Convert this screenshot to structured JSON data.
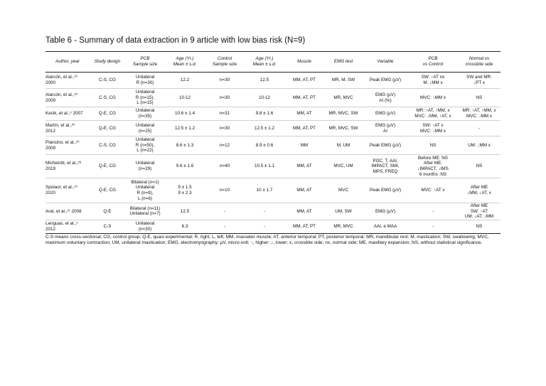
{
  "title": "Table 6 - Summary of data extraction in 9 article with low bias risk (N=9)",
  "columns": [
    [
      "Author, year"
    ],
    [
      "Study design"
    ],
    [
      "PCB",
      "Sample size"
    ],
    [
      "Age (Yr.)",
      "Mean ± s.d."
    ],
    [
      "Control",
      "Sample size"
    ],
    [
      "Age (Yr.)",
      "Mean ± s.d."
    ],
    [
      "Muscle"
    ],
    [
      "EMG test"
    ],
    [
      "Variable"
    ],
    [
      "PCB",
      "vs Control"
    ],
    [
      "Normal vs",
      "crossbite side"
    ]
  ],
  "rows": [
    {
      "author": [
        "Alarcón, et al.,¹⁶",
        "2000"
      ],
      "cells": [
        [
          "C-S, CG"
        ],
        [
          "Unilateral",
          "R (n=30)"
        ],
        [
          "12.2"
        ],
        [
          "n=30"
        ],
        [
          "12.5"
        ],
        [
          "MM, AT, PT"
        ],
        [
          "MR, M, SW"
        ],
        [
          "Peak EMG (µV)"
        ],
        [
          "SW: ↑AT nx",
          "M: ↓MM x"
        ],
        [
          "SW and MR:",
          "↓PT x"
        ]
      ]
    },
    {
      "author": [
        "Alarcón, et al.,¹⁸",
        "2009"
      ],
      "cells": [
        [
          "C-S, CG"
        ],
        [
          "Unilateral",
          "R (n=15),",
          "L (n=15)"
        ],
        [
          "10-12"
        ],
        [
          "n=30"
        ],
        [
          "10-12"
        ],
        [
          "MM, AT, PT"
        ],
        [
          "MR, MVC"
        ],
        [
          "EMG (µV)",
          "AI (%)"
        ],
        [
          "MVC: ↓MM x"
        ],
        [
          "NS"
        ]
      ]
    },
    {
      "author": [
        "Kecik, et al.,⁵ 2007"
      ],
      "cells": [
        [
          "Q-E, CG"
        ],
        [
          "Unilateral",
          "(n=35)"
        ],
        [
          "10.6 ± 1.4"
        ],
        [
          "n=31"
        ],
        [
          "9.8 ± 1.6"
        ],
        [
          "MM, AT"
        ],
        [
          "MR, MVC, SW"
        ],
        [
          "EMG (µV)"
        ],
        [
          "MR: ↑AT, ↑MM, x",
          "MVC: ↓MM, ↑AT, x"
        ],
        [
          "MR: ↑AT, ↑MM, x",
          "MVC: ↓MM x"
        ]
      ]
    },
    {
      "author": [
        "Martín, et al.,²⁵",
        "2012"
      ],
      "cells": [
        [
          "Q-E, CG"
        ],
        [
          "Unilateral",
          "(n=25)"
        ],
        [
          "12.5 ± 1.2"
        ],
        [
          "n=30"
        ],
        [
          "12.5 ± 1.2"
        ],
        [
          "MM, AT, PT"
        ],
        [
          "MR, MVC, SW"
        ],
        [
          "EMG (µV)",
          "AI"
        ],
        [
          "SW: ↑AT x",
          "MVC: ↓MM x"
        ],
        [
          "-"
        ]
      ]
    },
    {
      "author": [
        "Piancino, et al.,²⁶",
        "2009"
      ],
      "cells": [
        [
          "C-S, CG"
        ],
        [
          "Unilateral",
          "R (n=50),",
          "L (n=22)"
        ],
        [
          "8.6 ± 1.3"
        ],
        [
          "n=12"
        ],
        [
          "8.9 ± 0.6"
        ],
        [
          "MM"
        ],
        [
          "M, UM"
        ],
        [
          "Peak EMG (µV)"
        ],
        [
          "NS"
        ],
        [
          "UM: ↓MM x"
        ]
      ]
    },
    {
      "author": [
        "Michelotti, et al.,²⁸",
        "2019"
      ],
      "cells": [
        [
          "Q-E, CG"
        ],
        [
          "Unilateral",
          "(n=29)"
        ],
        [
          "9.6 ± 1.6"
        ],
        [
          "n=40"
        ],
        [
          "10.5 ± 1.1"
        ],
        [
          "MM, AT"
        ],
        [
          "MVC, UM"
        ],
        [
          "POC, T, AAI,",
          "IMPACT, SMI,",
          "MPS, FREQ"
        ],
        [
          "Before ME: NS",
          "After ME:",
          "↓IMPACT, ↓IMS",
          "6 months :NS"
        ],
        [
          "NS"
        ]
      ]
    },
    {
      "author": [
        "Spolaor, et al.,¹⁵",
        "2020"
      ],
      "cells": [
        [
          "Q-E, CG"
        ],
        [
          "Bilateral (n=1)",
          "Unilateral",
          "R (n=9),",
          "L (n=6)"
        ],
        [
          "9 ± 1.5",
          "9 ± 2.3"
        ],
        [
          "n=10"
        ],
        [
          "10 ± 1.7"
        ],
        [
          "MM, AT"
        ],
        [
          "MVC"
        ],
        [
          "Peak EMG (µV)"
        ],
        [
          "MVC: ↑AT x"
        ],
        [
          "After ME",
          "↓MM, ↓AT, x"
        ]
      ]
    },
    {
      "author": [
        "Arat, et al.,²⁷ 2008"
      ],
      "cells": [
        [
          "Q-E"
        ],
        [
          "Bilateral (n=11)",
          "Unilateral (n=7)"
        ],
        [
          "12.5"
        ],
        [
          "-"
        ],
        [
          "-"
        ],
        [
          "MM, AT"
        ],
        [
          "UM, SW"
        ],
        [
          "EMG (µV)"
        ],
        [
          "-"
        ],
        [
          "After ME",
          "SW: ↑AT",
          "UM: ↓AT, ↓MM"
        ]
      ]
    },
    {
      "author": [
        "Lenguas, et al.,⁴",
        "2012"
      ],
      "cells": [
        [
          "C-S"
        ],
        [
          "Unilateral",
          "(n=30)"
        ],
        [
          "6.3"
        ],
        [
          "-"
        ],
        [
          "-"
        ],
        [
          "MM, AT, PT"
        ],
        [
          "MR, MVC"
        ],
        [
          "AAI, e MAA"
        ],
        [
          "-"
        ],
        [
          "NS"
        ]
      ]
    }
  ],
  "footnote": "C-S means cross-sectional; CG, control group; Q-E, quasi experimental; R, right; L, left; MM, masseter muscle; AT, anterior temporal; PT, posterior temporal; MR, mandibular rest; M, mastication; SW, swallowing; MVC, maximum voluntary contraction; UM, unilateral mastication; EMG, electromyography; µV, micro-volt; ↑, higher; ↓, lower; x, crossbite side; nx, normal side; ME, maxillary expansion; NS, without statistical significance."
}
